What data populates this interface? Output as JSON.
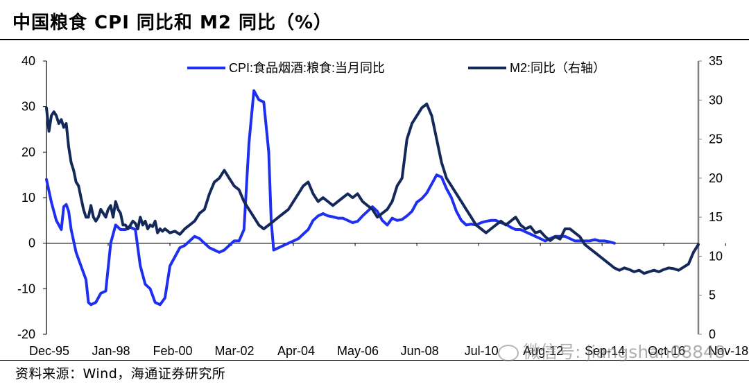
{
  "header": {
    "title": "中国粮食 CPI 同比和 M2 同比（%）"
  },
  "footer": {
    "source": "资料来源：Wind，海通证券研究所",
    "watermark": "微信号: jiangshan08848"
  },
  "colors": {
    "cpi": "#1f2ff0",
    "m2": "#14285a",
    "axis": "#000000",
    "right_axis": "#808080"
  },
  "chart_data": {
    "type": "line",
    "title": "中国粮食 CPI 同比和 M2 同比（%）",
    "x_start": "1995-12",
    "x_end": "2017-12",
    "x_ticks": [
      "Dec-95",
      "Jan-98",
      "Feb-00",
      "Mar-02",
      "Apr-04",
      "May-06",
      "Jun-08",
      "Jul-10",
      "Aug-12",
      "Sep-14",
      "Oct-16",
      "Nov-18"
    ],
    "x_tick_months": [
      0,
      25,
      50,
      75,
      100,
      125,
      150,
      175,
      200,
      225,
      250,
      275
    ],
    "ylim_left": [
      -20,
      40
    ],
    "yticks_left": [
      -20,
      -10,
      0,
      10,
      20,
      30,
      40
    ],
    "ylim_right": [
      0,
      35
    ],
    "yticks_right": [
      0,
      5,
      10,
      15,
      20,
      25,
      30,
      35
    ],
    "legend": [
      "CPI:食品烟酒:粮食:当月同比",
      "M2:同比（右轴）"
    ],
    "series": [
      {
        "name": "CPI:食品烟酒:粮食:当月同比",
        "axis": "left",
        "points": [
          [
            0,
            14
          ],
          [
            2,
            9
          ],
          [
            4,
            5
          ],
          [
            6,
            3
          ],
          [
            7,
            8
          ],
          [
            8,
            8.5
          ],
          [
            9,
            7
          ],
          [
            10,
            3
          ],
          [
            12,
            -2
          ],
          [
            14,
            -5
          ],
          [
            16,
            -8
          ],
          [
            17,
            -13
          ],
          [
            18,
            -13.5
          ],
          [
            20,
            -13
          ],
          [
            22,
            -11
          ],
          [
            24,
            -10.5
          ],
          [
            26,
            0
          ],
          [
            28,
            4
          ],
          [
            30,
            3
          ],
          [
            32,
            3
          ],
          [
            34,
            3.5
          ],
          [
            36,
            3
          ],
          [
            38,
            -5
          ],
          [
            40,
            -9
          ],
          [
            42,
            -10
          ],
          [
            44,
            -13
          ],
          [
            46,
            -13.5
          ],
          [
            48,
            -12
          ],
          [
            50,
            -5
          ],
          [
            52,
            -3
          ],
          [
            54,
            -1
          ],
          [
            56,
            -0.5
          ],
          [
            58,
            0.5
          ],
          [
            60,
            1.5
          ],
          [
            62,
            1
          ],
          [
            64,
            0
          ],
          [
            66,
            -1
          ],
          [
            68,
            -1.5
          ],
          [
            70,
            -2
          ],
          [
            72,
            -1.5
          ],
          [
            74,
            -0.5
          ],
          [
            76,
            0.5
          ],
          [
            78,
            0.5
          ],
          [
            80,
            3
          ],
          [
            82,
            22
          ],
          [
            84,
            33.5
          ],
          [
            86,
            31.5
          ],
          [
            88,
            31
          ],
          [
            90,
            20
          ],
          [
            91,
            5
          ],
          [
            92,
            -1.5
          ],
          [
            94,
            -1
          ],
          [
            96,
            -0.5
          ],
          [
            98,
            0
          ],
          [
            100,
            0.5
          ],
          [
            102,
            1
          ],
          [
            104,
            2
          ],
          [
            106,
            3
          ],
          [
            108,
            5
          ],
          [
            110,
            6
          ],
          [
            112,
            6.5
          ],
          [
            114,
            6
          ],
          [
            116,
            5.8
          ],
          [
            118,
            5.5
          ],
          [
            120,
            5.5
          ],
          [
            122,
            5
          ],
          [
            124,
            4.5
          ],
          [
            126,
            4.8
          ],
          [
            128,
            6
          ],
          [
            130,
            7
          ],
          [
            132,
            8
          ],
          [
            134,
            7
          ],
          [
            136,
            5
          ],
          [
            138,
            4
          ],
          [
            140,
            5.5
          ],
          [
            142,
            5
          ],
          [
            144,
            5.2
          ],
          [
            146,
            6
          ],
          [
            148,
            7
          ],
          [
            150,
            9
          ],
          [
            152,
            9.8
          ],
          [
            154,
            11
          ],
          [
            156,
            13
          ],
          [
            158,
            15
          ],
          [
            160,
            14.5
          ],
          [
            162,
            12
          ],
          [
            164,
            10
          ],
          [
            166,
            7
          ],
          [
            168,
            5
          ],
          [
            170,
            4
          ],
          [
            172,
            4.2
          ],
          [
            174,
            4
          ],
          [
            176,
            4.5
          ],
          [
            178,
            4.8
          ],
          [
            180,
            5
          ],
          [
            182,
            5
          ],
          [
            184,
            4.5
          ],
          [
            186,
            4.2
          ],
          [
            188,
            3.5
          ],
          [
            190,
            3
          ],
          [
            192,
            3
          ],
          [
            194,
            2.5
          ],
          [
            196,
            2
          ],
          [
            198,
            1.5
          ],
          [
            200,
            1
          ],
          [
            202,
            0.5
          ],
          [
            204,
            1
          ],
          [
            206,
            1.5
          ],
          [
            208,
            1.5
          ],
          [
            210,
            1.5
          ],
          [
            212,
            1
          ],
          [
            214,
            0.5
          ],
          [
            216,
            0.5
          ],
          [
            218,
            0.5
          ],
          [
            220,
            0.5
          ],
          [
            222,
            0.8
          ],
          [
            224,
            0.5
          ],
          [
            226,
            0.5
          ],
          [
            228,
            0.3
          ],
          [
            230,
            0
          ]
        ]
      },
      {
        "name": "M2:同比（右轴）",
        "axis": "right",
        "points": [
          [
            0,
            29
          ],
          [
            1,
            26
          ],
          [
            2,
            28
          ],
          [
            3,
            28.5
          ],
          [
            4,
            28
          ],
          [
            5,
            27
          ],
          [
            6,
            27.5
          ],
          [
            7,
            26.5
          ],
          [
            8,
            27
          ],
          [
            9,
            24
          ],
          [
            10,
            22
          ],
          [
            11,
            21
          ],
          [
            12,
            19.5
          ],
          [
            13,
            19
          ],
          [
            14,
            17.5
          ],
          [
            15,
            16
          ],
          [
            16,
            15
          ],
          [
            17,
            15
          ],
          [
            18,
            16.5
          ],
          [
            19,
            15
          ],
          [
            20,
            14.5
          ],
          [
            21,
            15
          ],
          [
            22,
            16
          ],
          [
            23,
            15.5
          ],
          [
            24,
            15
          ],
          [
            25,
            16
          ],
          [
            26,
            16.5
          ],
          [
            27,
            15
          ],
          [
            28,
            17
          ],
          [
            29,
            16
          ],
          [
            30,
            15.5
          ],
          [
            31,
            14
          ],
          [
            32,
            14
          ],
          [
            33,
            13.5
          ],
          [
            34,
            14
          ],
          [
            35,
            14.5
          ],
          [
            36,
            14.2
          ],
          [
            37,
            13.5
          ],
          [
            38,
            15
          ],
          [
            39,
            14
          ],
          [
            40,
            14.5
          ],
          [
            41,
            13.5
          ],
          [
            42,
            14
          ],
          [
            43,
            13.8
          ],
          [
            44,
            14.5
          ],
          [
            45,
            13
          ],
          [
            46,
            13.5
          ],
          [
            47,
            13.2
          ],
          [
            48,
            13.5
          ],
          [
            50,
            13
          ],
          [
            52,
            13.2
          ],
          [
            54,
            12.8
          ],
          [
            56,
            13.5
          ],
          [
            58,
            14
          ],
          [
            60,
            14.5
          ],
          [
            62,
            15.5
          ],
          [
            64,
            16
          ],
          [
            66,
            18
          ],
          [
            68,
            19.5
          ],
          [
            70,
            20
          ],
          [
            72,
            21
          ],
          [
            74,
            20
          ],
          [
            76,
            19
          ],
          [
            78,
            18.5
          ],
          [
            80,
            17
          ],
          [
            82,
            16
          ],
          [
            84,
            15
          ],
          [
            86,
            14
          ],
          [
            88,
            13.5
          ],
          [
            90,
            14
          ],
          [
            92,
            14.5
          ],
          [
            94,
            15
          ],
          [
            96,
            15.5
          ],
          [
            98,
            16
          ],
          [
            100,
            17
          ],
          [
            102,
            18
          ],
          [
            104,
            19
          ],
          [
            106,
            19.5
          ],
          [
            108,
            18
          ],
          [
            110,
            17
          ],
          [
            112,
            17.5
          ],
          [
            114,
            17
          ],
          [
            116,
            16.5
          ],
          [
            118,
            17
          ],
          [
            120,
            17.5
          ],
          [
            122,
            18
          ],
          [
            124,
            17.5
          ],
          [
            126,
            18
          ],
          [
            128,
            17
          ],
          [
            130,
            16.5
          ],
          [
            132,
            16
          ],
          [
            134,
            15
          ],
          [
            136,
            15.5
          ],
          [
            138,
            16
          ],
          [
            140,
            17
          ],
          [
            142,
            19
          ],
          [
            144,
            20
          ],
          [
            146,
            25
          ],
          [
            148,
            27
          ],
          [
            150,
            28
          ],
          [
            152,
            29
          ],
          [
            154,
            29.5
          ],
          [
            156,
            28
          ],
          [
            158,
            25
          ],
          [
            160,
            22
          ],
          [
            162,
            20
          ],
          [
            164,
            19
          ],
          [
            166,
            18
          ],
          [
            168,
            17
          ],
          [
            170,
            16
          ],
          [
            172,
            15
          ],
          [
            174,
            14
          ],
          [
            176,
            13.5
          ],
          [
            178,
            13
          ],
          [
            180,
            13.5
          ],
          [
            182,
            14
          ],
          [
            184,
            14.5
          ],
          [
            186,
            14
          ],
          [
            188,
            14.5
          ],
          [
            190,
            15
          ],
          [
            192,
            14
          ],
          [
            194,
            13.5
          ],
          [
            196,
            13.8
          ],
          [
            198,
            13
          ],
          [
            200,
            13.2
          ],
          [
            202,
            12.5
          ],
          [
            204,
            12
          ],
          [
            206,
            12.5
          ],
          [
            208,
            12.2
          ],
          [
            210,
            13.5
          ],
          [
            212,
            13.5
          ],
          [
            214,
            13
          ],
          [
            216,
            12.5
          ],
          [
            218,
            11.5
          ],
          [
            220,
            11
          ],
          [
            222,
            10.5
          ],
          [
            224,
            10
          ],
          [
            226,
            9.5
          ],
          [
            228,
            9
          ],
          [
            230,
            8.5
          ],
          [
            232,
            8.2
          ],
          [
            234,
            8.5
          ],
          [
            236,
            8.3
          ],
          [
            238,
            8
          ],
          [
            240,
            8.2
          ],
          [
            242,
            7.8
          ],
          [
            244,
            8
          ],
          [
            246,
            8.2
          ],
          [
            248,
            8
          ],
          [
            250,
            8.3
          ],
          [
            252,
            8.5
          ],
          [
            254,
            8.4
          ],
          [
            256,
            8.2
          ],
          [
            258,
            8.6
          ],
          [
            260,
            9
          ],
          [
            262,
            10.5
          ],
          [
            264,
            11.5
          ]
        ]
      }
    ]
  }
}
